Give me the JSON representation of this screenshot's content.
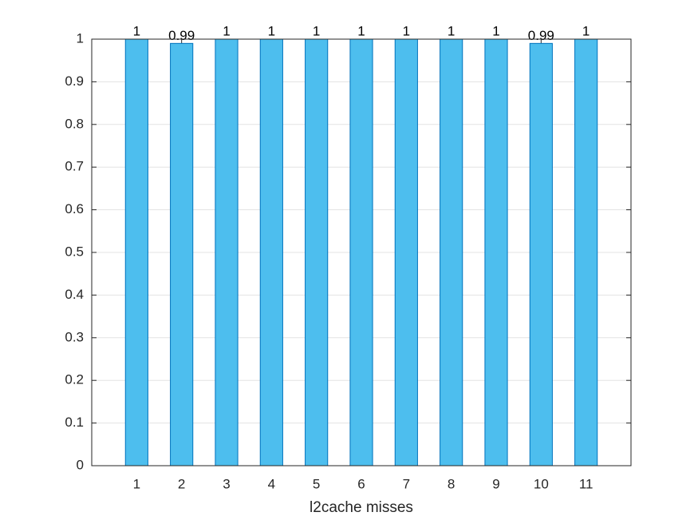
{
  "chart_data": {
    "type": "bar",
    "xlabel": "l2cache misses",
    "x": [
      1,
      2,
      3,
      4,
      5,
      6,
      7,
      8,
      9,
      10,
      11
    ],
    "values": [
      1,
      0.99,
      1,
      1,
      1,
      1,
      1,
      1,
      1,
      0.99,
      1
    ],
    "color": "#4DBEEE",
    "edge_color": "#0072BD",
    "xlim": [
      0,
      12
    ],
    "xticks": [
      1,
      2,
      3,
      4,
      5,
      6,
      7,
      8,
      9,
      10,
      11
    ],
    "ylim": [
      0,
      1
    ],
    "yticks": [
      0,
      0.1,
      0.2,
      0.3,
      0.4,
      0.5,
      0.6,
      0.7,
      0.8,
      0.9,
      1
    ],
    "grid": true
  }
}
